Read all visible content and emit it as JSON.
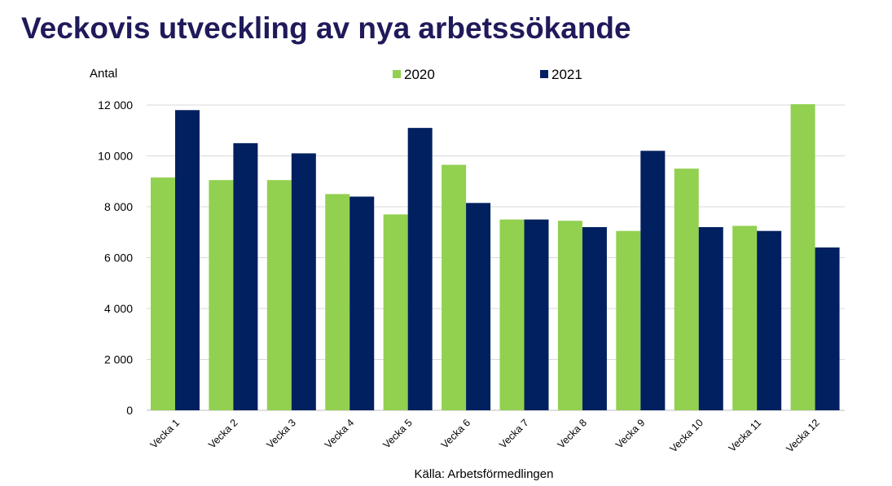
{
  "page": {
    "title": "Veckovis utveckling av nya arbetssökande",
    "source": "Källa: Arbetsförmedlingen"
  },
  "chart_data": {
    "type": "bar",
    "title": "",
    "ylabel": "Antal",
    "xlabel": "",
    "ylim": [
      0,
      12000
    ],
    "yticks": [
      0,
      2000,
      4000,
      6000,
      8000,
      10000,
      12000
    ],
    "ytick_labels": [
      "0",
      "2 000",
      "4 000",
      "6 000",
      "8 000",
      "10 000",
      "12 000"
    ],
    "grid": true,
    "legend_position": "top",
    "categories": [
      "Vecka 1",
      "Vecka 2",
      "Vecka 3",
      "Vecka 4",
      "Vecka 5",
      "Vecka 6",
      "Vecka 7",
      "Vecka 8",
      "Vecka 9",
      "Vecka 10",
      "Vecka 11",
      "Vecka 12"
    ],
    "series": [
      {
        "name": "2020",
        "color": "#92d050",
        "values": [
          9150,
          9050,
          9050,
          8500,
          7700,
          9650,
          7500,
          7450,
          7050,
          9500,
          7250,
          12050
        ]
      },
      {
        "name": "2021",
        "color": "#002060",
        "values": [
          11800,
          10500,
          10100,
          8400,
          11100,
          8150,
          7500,
          7200,
          10200,
          7200,
          7050,
          6400
        ]
      }
    ]
  }
}
